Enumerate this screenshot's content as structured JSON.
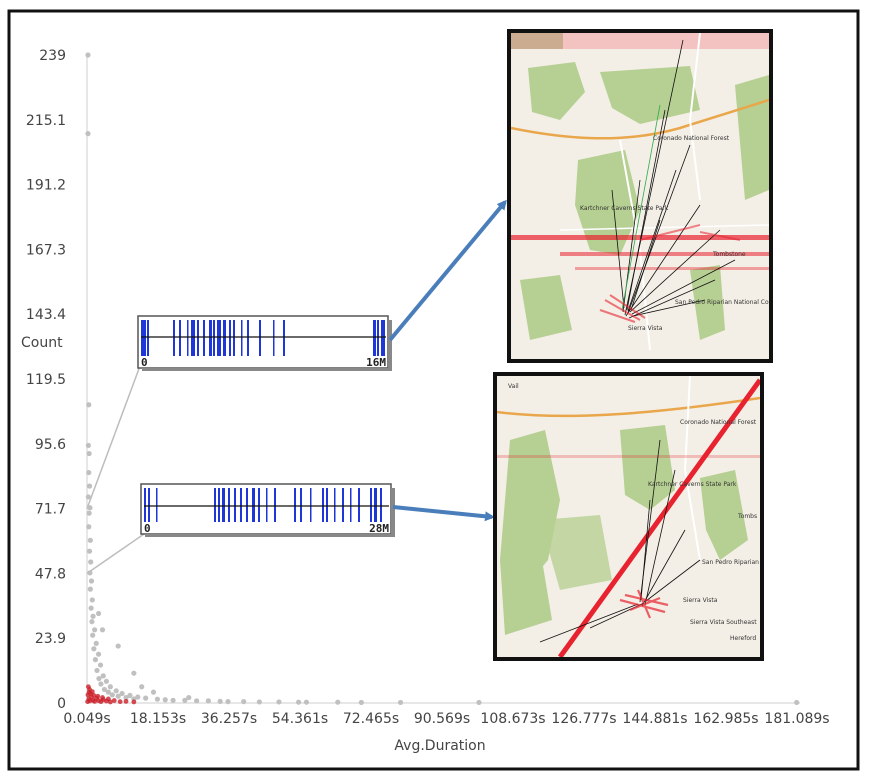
{
  "chart_data": {
    "type": "scatter",
    "xlabel": "Avg.Duration",
    "ylabel": "Count",
    "x_ticks": [
      "0.049s",
      "18.153s",
      "36.257s",
      "54.361s",
      "72.465s",
      "90.569s",
      "108.673s",
      "126.777s",
      "144.881s",
      "162.985s",
      "181.089s"
    ],
    "y_ticks": [
      "0",
      "23.9",
      "47.8",
      "71.7",
      "95.6",
      "119.5",
      "143.4",
      "167.3",
      "191.2",
      "215.1",
      "239"
    ],
    "xlim": [
      0.049,
      181.089
    ],
    "ylim": [
      0,
      239
    ],
    "grid": false,
    "point_color": "#c0c0c0",
    "dense_color": "#cc1f2a",
    "series": [
      {
        "points": [
          {
            "x": 0.3,
            "y": 239
          },
          {
            "x": 0.3,
            "y": 210
          },
          {
            "x": 0.5,
            "y": 110
          },
          {
            "x": 0.4,
            "y": 95
          },
          {
            "x": 0.6,
            "y": 92
          },
          {
            "x": 0.5,
            "y": 85
          },
          {
            "x": 0.7,
            "y": 80
          },
          {
            "x": 0.4,
            "y": 76
          },
          {
            "x": 0.8,
            "y": 72
          },
          {
            "x": 0.6,
            "y": 70
          },
          {
            "x": 0.5,
            "y": 65
          },
          {
            "x": 0.9,
            "y": 60
          },
          {
            "x": 0.7,
            "y": 56
          },
          {
            "x": 1.0,
            "y": 52
          },
          {
            "x": 0.8,
            "y": 48
          },
          {
            "x": 1.2,
            "y": 45
          },
          {
            "x": 0.9,
            "y": 42
          },
          {
            "x": 1.4,
            "y": 38
          },
          {
            "x": 1.1,
            "y": 35
          },
          {
            "x": 1.6,
            "y": 32
          },
          {
            "x": 1.3,
            "y": 30
          },
          {
            "x": 2.0,
            "y": 27
          },
          {
            "x": 1.5,
            "y": 25
          },
          {
            "x": 2.4,
            "y": 22
          },
          {
            "x": 1.8,
            "y": 20
          },
          {
            "x": 3.0,
            "y": 18
          },
          {
            "x": 2.2,
            "y": 16
          },
          {
            "x": 3.5,
            "y": 14
          },
          {
            "x": 2.6,
            "y": 12
          },
          {
            "x": 4.2,
            "y": 10
          },
          {
            "x": 3.1,
            "y": 9
          },
          {
            "x": 5.0,
            "y": 8
          },
          {
            "x": 3.6,
            "y": 7
          },
          {
            "x": 6.0,
            "y": 6
          },
          {
            "x": 4.5,
            "y": 5
          },
          {
            "x": 7.5,
            "y": 4.5
          },
          {
            "x": 5.5,
            "y": 4
          },
          {
            "x": 9.0,
            "y": 3.5
          },
          {
            "x": 6.5,
            "y": 3
          },
          {
            "x": 11.0,
            "y": 2.8
          },
          {
            "x": 8.0,
            "y": 2.5
          },
          {
            "x": 13.0,
            "y": 2.2
          },
          {
            "x": 10.0,
            "y": 2
          },
          {
            "x": 15.0,
            "y": 1.8
          },
          {
            "x": 12.0,
            "y": 1.5
          },
          {
            "x": 18.0,
            "y": 1.4
          },
          {
            "x": 20.0,
            "y": 1.2
          },
          {
            "x": 22.0,
            "y": 1.0
          },
          {
            "x": 25.0,
            "y": 1.0
          },
          {
            "x": 28.0,
            "y": 0.8
          },
          {
            "x": 31.0,
            "y": 0.8
          },
          {
            "x": 34.0,
            "y": 0.6
          },
          {
            "x": 36.0,
            "y": 0.5
          },
          {
            "x": 40.0,
            "y": 0.5
          },
          {
            "x": 44.0,
            "y": 0.4
          },
          {
            "x": 49.0,
            "y": 0.4
          },
          {
            "x": 54.0,
            "y": 0.3
          },
          {
            "x": 56.0,
            "y": 0.3
          },
          {
            "x": 64.0,
            "y": 0.3
          },
          {
            "x": 70.0,
            "y": 0.2
          },
          {
            "x": 80.0,
            "y": 0.2
          },
          {
            "x": 100.0,
            "y": 0.2
          },
          {
            "x": 181.0,
            "y": 0.2
          },
          {
            "x": 8.0,
            "y": 21
          },
          {
            "x": 4.0,
            "y": 27
          },
          {
            "x": 12.0,
            "y": 11
          },
          {
            "x": 3.0,
            "y": 33
          },
          {
            "x": 14.0,
            "y": 6
          },
          {
            "x": 17.0,
            "y": 4
          },
          {
            "x": 26.0,
            "y": 2
          }
        ]
      }
    ],
    "dense_points": [
      {
        "x": 0.2,
        "y": 0.5
      },
      {
        "x": 0.5,
        "y": 1.5
      },
      {
        "x": 0.8,
        "y": 0.8
      },
      {
        "x": 1.2,
        "y": 2.2
      },
      {
        "x": 1.6,
        "y": 1.0
      },
      {
        "x": 2.0,
        "y": 0.6
      },
      {
        "x": 2.5,
        "y": 1.8
      },
      {
        "x": 3.0,
        "y": 0.9
      },
      {
        "x": 3.6,
        "y": 0.5
      },
      {
        "x": 4.2,
        "y": 1.2
      },
      {
        "x": 5.0,
        "y": 0.7
      },
      {
        "x": 6.0,
        "y": 0.4
      },
      {
        "x": 7.0,
        "y": 0.9
      },
      {
        "x": 8.5,
        "y": 0.5
      },
      {
        "x": 0.3,
        "y": 3.0
      },
      {
        "x": 0.6,
        "y": 4.0
      },
      {
        "x": 1.0,
        "y": 3.4
      },
      {
        "x": 1.8,
        "y": 2.8
      },
      {
        "x": 2.8,
        "y": 2.5
      },
      {
        "x": 4.0,
        "y": 2.0
      },
      {
        "x": 0.4,
        "y": 6.0
      },
      {
        "x": 0.7,
        "y": 5.0
      },
      {
        "x": 1.4,
        "y": 4.2
      },
      {
        "x": 5.5,
        "y": 1.5
      },
      {
        "x": 10.0,
        "y": 0.6
      },
      {
        "x": 12.0,
        "y": 0.4
      }
    ],
    "insets": {
      "strips": [
        {
          "left_label": "0",
          "right_label": "16M",
          "count_y": 71.7
        },
        {
          "left_label": "0",
          "right_label": "28M",
          "count_y": 47.8
        }
      ],
      "map_top": {
        "labels": [
          "Coronado National Forest",
          "Kartchner Caverns State Park",
          "Tombstone",
          "San Pedro Riparian National Conservation Area",
          "Sierra Vista"
        ]
      },
      "map_bottom": {
        "labels": [
          "Vail",
          "Coronado National Forest",
          "Kartchner Caverns State Park",
          "Tombs",
          "San Pedro Riparian National Conservation Area",
          "Sierra Vista",
          "Sierra Vista Southeast",
          "Hereford"
        ]
      }
    },
    "arrow_color": "#4a7ebb",
    "highlight_color": "#e8222f"
  }
}
